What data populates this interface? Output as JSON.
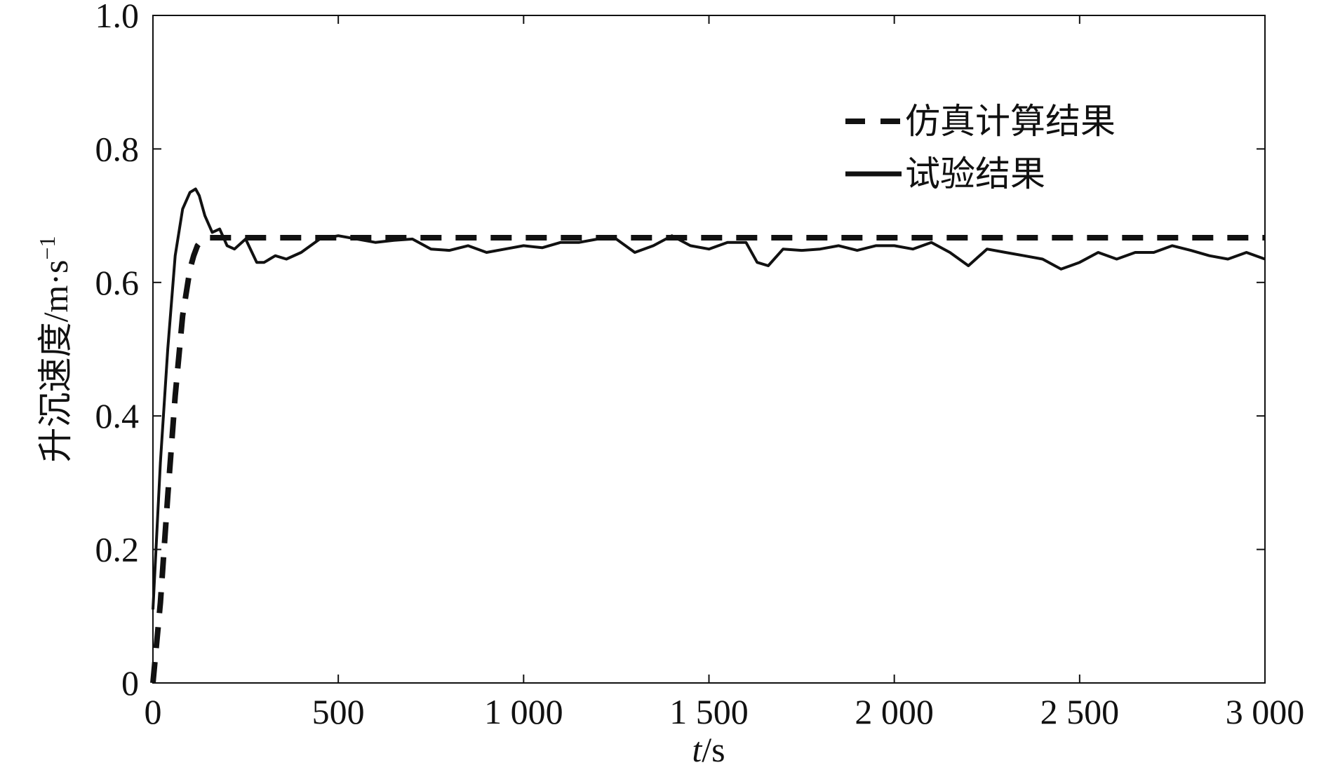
{
  "chart_data": {
    "type": "line",
    "xlabel_italic": "t",
    "xlabel_unit": "/s",
    "ylabel": "升沉速度/m·s",
    "ylabel_sup": "−1",
    "xlim": [
      0,
      3000
    ],
    "ylim": [
      0,
      1.0
    ],
    "x_ticks": [
      0,
      500,
      1000,
      1500,
      2000,
      2500,
      3000
    ],
    "x_tick_labels": [
      "0",
      "500",
      "1 000",
      "1 500",
      "2 000",
      "2 500",
      "3 000"
    ],
    "y_ticks": [
      0,
      0.2,
      0.4,
      0.6,
      0.8,
      1.0
    ],
    "y_tick_labels": [
      "0",
      "0.2",
      "0.4",
      "0.6",
      "0.8",
      "1.0"
    ],
    "grid": false,
    "legend_position": "top-right",
    "series": [
      {
        "name": "仿真计算结果",
        "style": "dashed",
        "color": "#111111",
        "x": [
          0,
          20,
          40,
          60,
          80,
          100,
          110,
          120,
          130,
          140,
          150,
          200,
          500,
          1000,
          1500,
          2000,
          2500,
          3000
        ],
        "y": [
          0,
          0.12,
          0.28,
          0.43,
          0.55,
          0.62,
          0.64,
          0.655,
          0.662,
          0.665,
          0.667,
          0.667,
          0.667,
          0.667,
          0.667,
          0.667,
          0.667,
          0.667
        ]
      },
      {
        "name": "试验结果",
        "style": "solid",
        "color": "#111111",
        "x": [
          0,
          10,
          20,
          40,
          60,
          80,
          100,
          115,
          125,
          140,
          160,
          180,
          200,
          220,
          250,
          280,
          300,
          330,
          360,
          400,
          450,
          500,
          550,
          600,
          650,
          700,
          750,
          800,
          850,
          900,
          950,
          1000,
          1050,
          1100,
          1150,
          1200,
          1250,
          1300,
          1350,
          1400,
          1450,
          1500,
          1550,
          1600,
          1630,
          1660,
          1700,
          1750,
          1800,
          1850,
          1900,
          1950,
          2000,
          2050,
          2100,
          2150,
          2200,
          2250,
          2300,
          2350,
          2400,
          2450,
          2500,
          2550,
          2600,
          2650,
          2700,
          2750,
          2800,
          2850,
          2900,
          2950,
          3000
        ],
        "y": [
          0.11,
          0.22,
          0.33,
          0.5,
          0.64,
          0.71,
          0.735,
          0.74,
          0.73,
          0.7,
          0.675,
          0.68,
          0.655,
          0.65,
          0.665,
          0.63,
          0.63,
          0.64,
          0.635,
          0.645,
          0.665,
          0.67,
          0.665,
          0.66,
          0.663,
          0.665,
          0.65,
          0.648,
          0.655,
          0.645,
          0.65,
          0.655,
          0.652,
          0.66,
          0.66,
          0.665,
          0.665,
          0.645,
          0.655,
          0.67,
          0.655,
          0.65,
          0.66,
          0.66,
          0.63,
          0.625,
          0.65,
          0.648,
          0.65,
          0.655,
          0.648,
          0.655,
          0.655,
          0.65,
          0.66,
          0.645,
          0.625,
          0.65,
          0.645,
          0.64,
          0.635,
          0.62,
          0.63,
          0.645,
          0.635,
          0.645,
          0.645,
          0.655,
          0.648,
          0.64,
          0.635,
          0.645,
          0.635
        ]
      }
    ]
  }
}
